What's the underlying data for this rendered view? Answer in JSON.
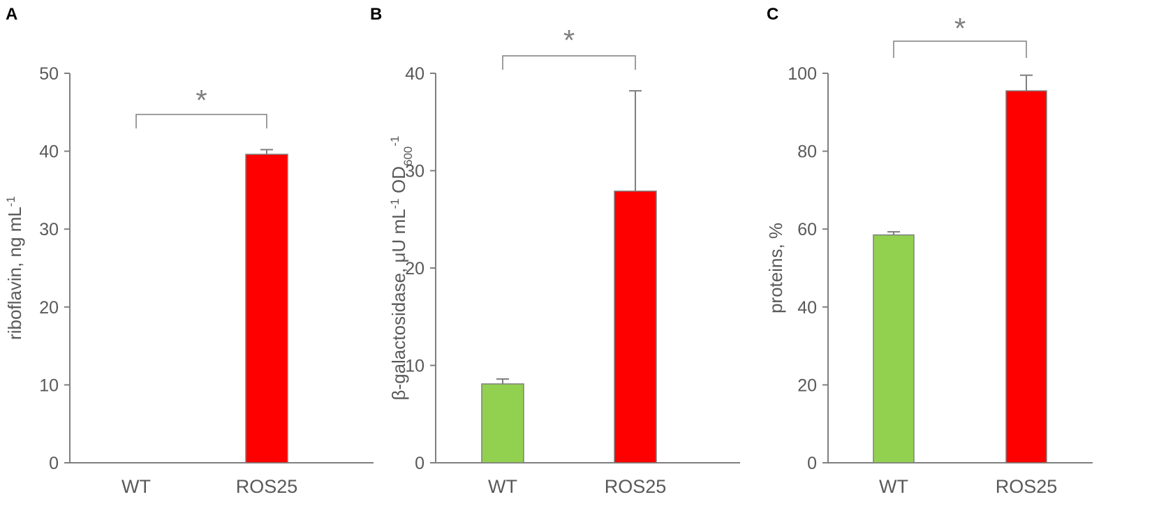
{
  "chart_data": [
    {
      "panel": "A",
      "type": "bar",
      "categories": [
        "WT",
        "ROS25"
      ],
      "values": [
        0,
        39.6
      ],
      "errors": [
        0,
        0.6
      ],
      "colors": [
        "#92D050",
        "#FF0000"
      ],
      "ylabel": "riboflavin, ng mL",
      "ylabel_sup": "-1",
      "ylim": [
        0,
        50
      ],
      "yticks": [
        0,
        10,
        20,
        30,
        40,
        50
      ],
      "significance": "*"
    },
    {
      "panel": "B",
      "type": "bar",
      "categories": [
        "WT",
        "ROS25"
      ],
      "values": [
        8.1,
        27.9
      ],
      "errors": [
        0.5,
        10.3
      ],
      "colors": [
        "#92D050",
        "#FF0000"
      ],
      "ylabel_parts": [
        {
          "t": "β-galactosidase, μU mL",
          "s": "base"
        },
        {
          "t": "-1",
          "s": "sup"
        },
        {
          "t": " OD",
          "s": "base"
        },
        {
          "t": "600",
          "s": "sub"
        },
        {
          "t": "-1",
          "s": "sup"
        }
      ],
      "ylim": [
        0,
        40
      ],
      "yticks": [
        0,
        10,
        20,
        30,
        40
      ],
      "significance": "*"
    },
    {
      "panel": "C",
      "type": "bar",
      "categories": [
        "WT",
        "ROS25"
      ],
      "values": [
        58.5,
        95.5
      ],
      "errors": [
        0.8,
        4.0
      ],
      "colors": [
        "#92D050",
        "#FF0000"
      ],
      "ylabel": "proteins, %",
      "ylim": [
        0,
        100
      ],
      "yticks": [
        0,
        20,
        40,
        60,
        80,
        100
      ],
      "significance": "*"
    }
  ]
}
